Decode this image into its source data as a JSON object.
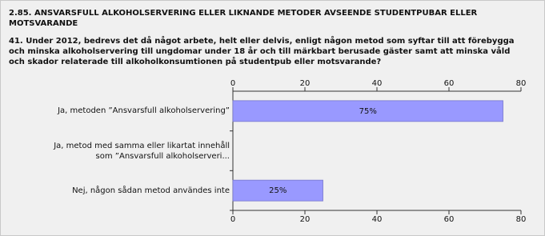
{
  "chart_data": {
    "type": "bar",
    "orientation": "horizontal",
    "title": "2.85. ANSVARSFULL ALKOHOLSERVERING ELLER LIKNANDE METODER AVSEENDE STUDENTPUBAR ELLER MOTSVARANDE",
    "subtitle": "41. Under 2012, bedrevs det då något arbete, helt eller delvis, enligt någon metod som syftar till att förebygga och minska alkoholservering till ungdomar under 18 år och till märkbart berusade gäster samt att minska våld och skador relaterade till alkoholkonsumtionen på studentpub eller motsvarande?",
    "categories": [
      "Ja, metoden ”Ansvarsfull alkoholservering”",
      "Ja, metod med samma eller likartat innehåll\nsom ”Ansvarsfull alkoholserveri...",
      "Nej, någon sådan metod användes inte"
    ],
    "values": [
      75,
      0,
      25
    ],
    "value_labels": [
      "75%",
      null,
      "25%"
    ],
    "color": "#9999ff",
    "xlim": [
      0,
      80
    ],
    "xticks": [
      0,
      20,
      40,
      60,
      80
    ],
    "grid": false
  }
}
